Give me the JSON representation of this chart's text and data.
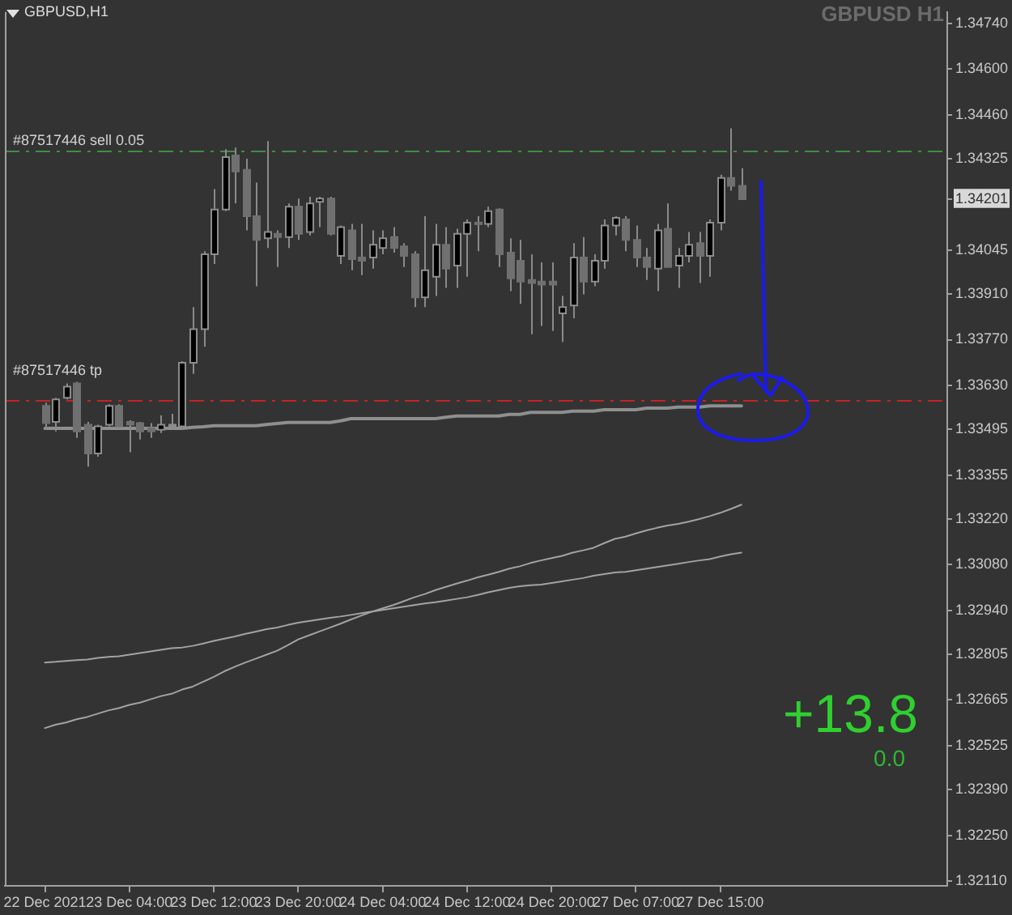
{
  "chart_data": {
    "type": "candlestick",
    "title": "GBPUSD,H1",
    "subtitle": "GBPUSD H1",
    "categories": [
      "22 Dec 2021",
      null,
      null,
      null,
      null,
      null,
      null,
      null,
      "23 Dec 04:00",
      null,
      null,
      null,
      null,
      null,
      null,
      null,
      "23 Dec 12:00",
      null,
      null,
      null,
      null,
      null,
      null,
      null,
      "23 Dec 20:00",
      null,
      null,
      null,
      null,
      null,
      null,
      null,
      "24 Dec 04:00",
      null,
      null,
      null,
      null,
      null,
      null,
      null,
      "24 Dec 12:00",
      null,
      null,
      null,
      null,
      null,
      null,
      null,
      "24 Dec 20:00",
      null,
      null,
      null,
      null,
      null,
      null,
      null,
      "27 Dec 07:00",
      null,
      null,
      null,
      null,
      null,
      null,
      null,
      "27 Dec 15:00",
      null,
      null
    ],
    "ohlc": [
      [
        1.33567,
        1.33577,
        1.33494,
        1.33514
      ],
      [
        1.33518,
        1.33592,
        1.33489,
        1.33587
      ],
      [
        1.33592,
        1.33636,
        1.33587,
        1.33626
      ],
      [
        1.33636,
        1.33641,
        1.33469,
        1.33489
      ],
      [
        1.33509,
        1.33518,
        1.33381,
        1.33421
      ],
      [
        1.33421,
        1.33509,
        1.33411,
        1.33504
      ],
      [
        1.33509,
        1.33572,
        1.33504,
        1.33567
      ],
      [
        1.33567,
        1.33572,
        1.33494,
        1.33504
      ],
      [
        1.33518,
        1.33523,
        1.33425,
        1.33509
      ],
      [
        1.33514,
        1.33518,
        1.33464,
        1.33489
      ],
      [
        1.33499,
        1.33514,
        1.33469,
        1.33489
      ],
      [
        1.33494,
        1.33538,
        1.33484,
        1.33509
      ],
      [
        1.33504,
        1.33543,
        1.33494,
        1.33509
      ],
      [
        1.33504,
        1.33704,
        1.33499,
        1.33699
      ],
      [
        1.33699,
        1.3387,
        1.33665,
        1.33802
      ],
      [
        1.33802,
        1.34041,
        1.33748,
        1.34032
      ],
      [
        1.34032,
        1.34232,
        1.34002,
        1.34169
      ],
      [
        1.34169,
        1.34354,
        1.34164,
        1.3433
      ],
      [
        1.34335,
        1.34359,
        1.34188,
        1.34286
      ],
      [
        1.34291,
        1.34325,
        1.34105,
        1.34149
      ],
      [
        1.34149,
        1.34252,
        1.33934,
        1.34076
      ],
      [
        1.34081,
        1.34379,
        1.34051,
        1.341
      ],
      [
        1.34095,
        1.34105,
        1.33993,
        1.34085
      ],
      [
        1.34085,
        1.34188,
        1.34051,
        1.34178
      ],
      [
        1.34178,
        1.34203,
        1.34076,
        1.34095
      ],
      [
        1.341,
        1.34208,
        1.3409,
        1.34188
      ],
      [
        1.34193,
        1.34208,
        1.34115,
        1.34203
      ],
      [
        1.34203,
        1.34208,
        1.3409,
        1.34095
      ],
      [
        1.34027,
        1.3412,
        1.34002,
        1.34115
      ],
      [
        1.34105,
        1.34125,
        1.33983,
        1.34017
      ],
      [
        1.34022,
        1.34125,
        1.33968,
        1.34012
      ],
      [
        1.34022,
        1.34105,
        1.33988,
        1.34061
      ],
      [
        1.34051,
        1.34105,
        1.34032,
        1.34081
      ],
      [
        1.34085,
        1.34115,
        1.34037,
        1.34051
      ],
      [
        1.34056,
        1.34066,
        1.33993,
        1.34027
      ],
      [
        1.34032,
        1.34041,
        1.3387,
        1.339
      ],
      [
        1.339,
        1.34149,
        1.3387,
        1.33983
      ],
      [
        1.33963,
        1.34125,
        1.33904,
        1.34061
      ],
      [
        1.34061,
        1.34115,
        1.33929,
        1.33988
      ],
      [
        1.33997,
        1.3411,
        1.33929,
        1.34095
      ],
      [
        1.34095,
        1.34139,
        1.33963,
        1.34129
      ],
      [
        1.34129,
        1.34149,
        1.34041,
        1.34125
      ],
      [
        1.34125,
        1.34178,
        1.34115,
        1.34164
      ],
      [
        1.34169,
        1.34173,
        1.33993,
        1.34032
      ],
      [
        1.34037,
        1.34081,
        1.33919,
        1.33958
      ],
      [
        1.34012,
        1.34076,
        1.3388,
        1.33948
      ],
      [
        1.33953,
        1.34032,
        1.33787,
        1.33944
      ],
      [
        1.33948,
        1.34007,
        1.33812,
        1.33939
      ],
      [
        1.33948,
        1.34007,
        1.33797,
        1.33939
      ],
      [
        1.33851,
        1.33904,
        1.33763,
        1.3387
      ],
      [
        1.33875,
        1.34066,
        1.33836,
        1.34022
      ],
      [
        1.34022,
        1.34085,
        1.33909,
        1.33948
      ],
      [
        1.33948,
        1.34032,
        1.33934,
        1.34012
      ],
      [
        1.34012,
        1.34139,
        1.33988,
        1.3412
      ],
      [
        1.3412,
        1.34149,
        1.3409,
        1.34144
      ],
      [
        1.34139,
        1.34149,
        1.34041,
        1.34076
      ],
      [
        1.34076,
        1.3412,
        1.33993,
        1.34022
      ],
      [
        1.34022,
        1.34051,
        1.33953,
        1.33993
      ],
      [
        1.33988,
        1.34125,
        1.33919,
        1.34105
      ],
      [
        1.3411,
        1.34188,
        1.33993,
        1.33993
      ],
      [
        1.33997,
        1.34051,
        1.33929,
        1.34027
      ],
      [
        1.34027,
        1.341,
        1.34007,
        1.34061
      ],
      [
        1.34066,
        1.341,
        1.33944,
        1.34027
      ],
      [
        1.34027,
        1.34139,
        1.33963,
        1.34129
      ],
      [
        1.34129,
        1.34276,
        1.34105,
        1.34266
      ],
      [
        1.34266,
        1.34418,
        1.34227,
        1.34242
      ],
      [
        1.34242,
        1.34296,
        1.34201,
        1.34201
      ]
    ],
    "series": [
      {
        "type": "line",
        "color": "#8f8f8f",
        "values": [
          1.33498,
          1.33498,
          1.33498,
          1.33498,
          1.33498,
          1.33498,
          1.33498,
          1.33498,
          1.33498,
          1.33498,
          1.33498,
          1.33498,
          1.33498,
          1.33498,
          1.33501,
          1.33503,
          1.33506,
          1.33506,
          1.33506,
          1.33506,
          1.33506,
          1.3351,
          1.33513,
          1.33516,
          1.33516,
          1.33516,
          1.33516,
          1.33516,
          1.33521,
          1.33528,
          1.33528,
          1.33528,
          1.33528,
          1.33528,
          1.33528,
          1.33528,
          1.33528,
          1.33528,
          1.33532,
          1.33536,
          1.33536,
          1.33536,
          1.33536,
          1.33536,
          1.33541,
          1.33541,
          1.33547,
          1.33547,
          1.33547,
          1.33547,
          1.33551,
          1.33551,
          1.33551,
          1.33555,
          1.33555,
          1.33555,
          1.33555,
          1.3356,
          1.3356,
          1.3356,
          1.33563,
          1.33563,
          1.33563,
          1.33567,
          1.33567,
          1.33567,
          1.33567
        ]
      },
      {
        "type": "line",
        "color": "#a3a3a3",
        "values": [
          1.32579,
          1.32589,
          1.32596,
          1.32606,
          1.32613,
          1.32623,
          1.32633,
          1.3264,
          1.3265,
          1.32657,
          1.32667,
          1.32677,
          1.32684,
          1.32697,
          1.32706,
          1.32721,
          1.32736,
          1.32753,
          1.32767,
          1.3278,
          1.32792,
          1.32804,
          1.32816,
          1.32833,
          1.32851,
          1.32863,
          1.32875,
          1.32887,
          1.32899,
          1.32912,
          1.32924,
          1.32936,
          1.32946,
          1.32956,
          1.32968,
          1.3298,
          1.3299,
          1.33002,
          1.33012,
          1.33022,
          1.33031,
          1.33041,
          1.33049,
          1.33058,
          1.33068,
          1.33075,
          1.33085,
          1.33093,
          1.331,
          1.33107,
          1.33117,
          1.33124,
          1.33132,
          1.33146,
          1.33159,
          1.33166,
          1.33176,
          1.33185,
          1.33193,
          1.332,
          1.33205,
          1.33212,
          1.3322,
          1.33229,
          1.33239,
          1.33251,
          1.33264
        ]
      },
      {
        "type": "line",
        "color": "#a3a3a3",
        "values": [
          1.3278,
          1.32782,
          1.32785,
          1.32787,
          1.32789,
          1.32794,
          1.32797,
          1.32799,
          1.32804,
          1.32809,
          1.32814,
          1.32819,
          1.32824,
          1.32826,
          1.32831,
          1.32838,
          1.32846,
          1.32853,
          1.3286,
          1.32868,
          1.32875,
          1.32882,
          1.32887,
          1.32895,
          1.32902,
          1.32907,
          1.32912,
          1.32917,
          1.32921,
          1.32926,
          1.32931,
          1.32936,
          1.32941,
          1.32946,
          1.32951,
          1.32956,
          1.32961,
          1.32965,
          1.3297,
          1.32975,
          1.3298,
          1.32987,
          1.32995,
          1.33002,
          1.33009,
          1.33014,
          1.33017,
          1.33019,
          1.33024,
          1.33029,
          1.33034,
          1.33039,
          1.33046,
          1.33051,
          1.33056,
          1.33058,
          1.33063,
          1.33068,
          1.33073,
          1.33078,
          1.33083,
          1.33088,
          1.33093,
          1.33097,
          1.33105,
          1.33112,
          1.33117
        ]
      }
    ],
    "ylim": [
      1.32095,
      1.34775
    ],
    "yticks": [
      {
        "value": 1.3211,
        "label": "1.32110"
      },
      {
        "value": 1.3225,
        "label": "1.32250"
      },
      {
        "value": 1.3239,
        "label": "1.32390"
      },
      1.32525,
      1.32665,
      1.32805,
      {
        "value": 1.3294,
        "label": "1.32940"
      },
      {
        "value": 1.3308,
        "label": "1.33080"
      },
      {
        "value": 1.3322,
        "label": "1.33220"
      },
      1.33355,
      1.33495,
      {
        "value": 1.3363,
        "label": "1.33630"
      },
      {
        "value": 1.3377,
        "label": "1.33770"
      },
      {
        "value": 1.3391,
        "label": "1.33910"
      },
      1.34045,
      1.34201,
      1.34325,
      {
        "value": 1.3446,
        "label": "1.34460"
      },
      {
        "value": 1.346,
        "label": "1.34600"
      },
      {
        "value": 1.3474,
        "label": "1.34740"
      }
    ],
    "ref_lines": [
      {
        "axis": "y",
        "value": 1.34352,
        "label": "#87517446 sell 0.05",
        "color": "#3f8f3f",
        "line_style": "dashed"
      },
      {
        "axis": "y",
        "value": 1.33585,
        "label": "#87517446 tp",
        "color": "#c42424",
        "line_style": "dashed"
      }
    ],
    "annotations": [
      "+13.8",
      "0.0"
    ]
  }
}
